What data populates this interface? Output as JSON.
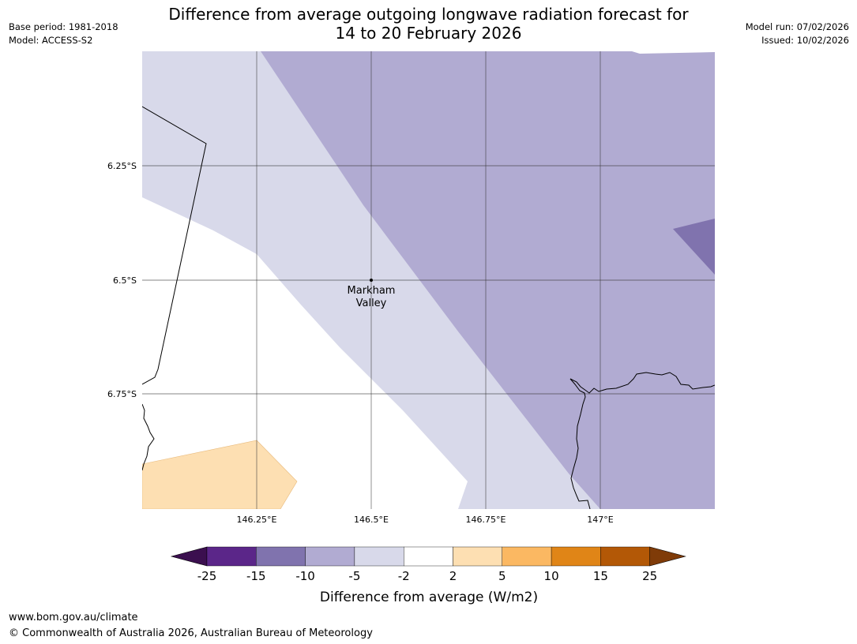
{
  "header": {
    "base_period": "Base period: 1981-2018",
    "model": "Model: ACCESS-S2",
    "title_line1": "Difference from average outgoing longwave radiation forecast for",
    "title_line2": "14 to 20 February 2026",
    "model_run": "Model run: 07/02/2026",
    "issued": "Issued: 10/02/2026"
  },
  "map": {
    "lat_labels": [
      "6.25°S",
      "6.5°S",
      "6.75°S"
    ],
    "lon_labels": [
      "146.25°E",
      "146.5°E",
      "146.75°E",
      "147°E"
    ],
    "place": {
      "name_line1": "Markham",
      "name_line2": "Valley"
    }
  },
  "legend": {
    "ticks": [
      "-25",
      "-15",
      "-10",
      "-5",
      "-2",
      "2",
      "5",
      "10",
      "15",
      "25"
    ],
    "title": "Difference from average (W/m2)",
    "colors": [
      "#3b0f4f",
      "#5b2689",
      "#8073ae",
      "#b1abd2",
      "#d8d9ea",
      "#ffffff",
      "#fddfb2",
      "#fbb862",
      "#e08517",
      "#b35806",
      "#7f3b08"
    ]
  },
  "footer": {
    "url": "www.bom.gov.au/climate",
    "copyright": "© Commonwealth of Australia 2026, Australian Bureau of Meteorology"
  }
}
